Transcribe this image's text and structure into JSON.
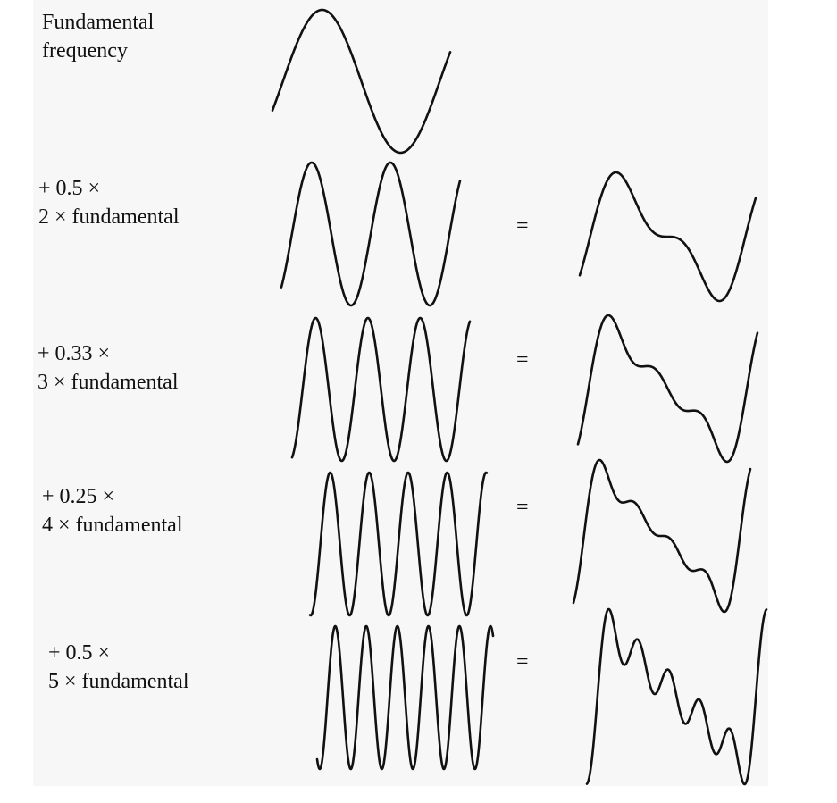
{
  "rows": [
    {
      "label_line1": "Fundamental",
      "label_line2": "frequency",
      "equals": "",
      "coefficient": 1.0,
      "harmonic": 1
    },
    {
      "label_line1": "+ 0.5 ×",
      "label_line2": "2 × fundamental",
      "equals": "=",
      "coefficient": 0.5,
      "harmonic": 2
    },
    {
      "label_line1": "+ 0.33 ×",
      "label_line2": "3 × fundamental",
      "equals": "=",
      "coefficient": 0.33,
      "harmonic": 3
    },
    {
      "label_line1": "+ 0.25 ×",
      "label_line2": "4 × fundamental",
      "equals": "=",
      "coefficient": 0.25,
      "harmonic": 4
    },
    {
      "label_line1": "+ 0.5 ×",
      "label_line2": "5 × fundamental",
      "equals": "=",
      "coefficient": 0.5,
      "harmonic": 5
    }
  ],
  "colors": {
    "stroke": "#111111",
    "background": "#f7f7f7"
  }
}
